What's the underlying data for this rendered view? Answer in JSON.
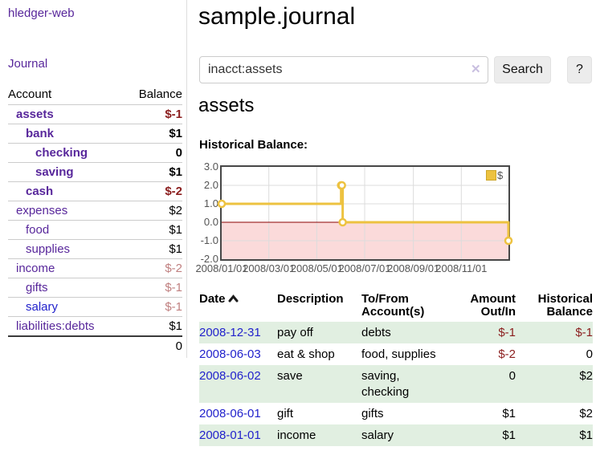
{
  "app": {
    "title": "hledger-web"
  },
  "sidebar": {
    "journal_link": "Journal",
    "accounts_table": {
      "header_account": "Account",
      "header_balance": "Balance",
      "rows": [
        {
          "name": "assets",
          "balance": "$-1"
        },
        {
          "name": "bank",
          "balance": "$1"
        },
        {
          "name": "checking",
          "balance": "0"
        },
        {
          "name": "saving",
          "balance": "$1"
        },
        {
          "name": "cash",
          "balance": "$-2"
        },
        {
          "name": "expenses",
          "balance": "$2"
        },
        {
          "name": "food",
          "balance": "$1"
        },
        {
          "name": "supplies",
          "balance": "$1"
        },
        {
          "name": "income",
          "balance": "$-2"
        },
        {
          "name": "gifts",
          "balance": "$-1"
        },
        {
          "name": "salary",
          "balance": "$-1"
        },
        {
          "name": "liabilities:debts",
          "balance": "$1"
        }
      ],
      "total": "0"
    }
  },
  "main": {
    "title": "sample.journal",
    "search": {
      "value": "inacct:assets",
      "clear_icon": "✕",
      "search_button": "Search",
      "help_button": "?"
    },
    "account_heading": "assets",
    "chart_label": "Historical Balance:",
    "register_table": {
      "headers": {
        "date": "Date",
        "description": "Description",
        "accounts": "To/From Account(s)",
        "amount": "Amount Out/In",
        "balance": "Historical Balance"
      },
      "rows": [
        {
          "date": "2008-12-31",
          "description": "pay off",
          "accounts": "debts",
          "amount": "$-1",
          "balance": "$-1"
        },
        {
          "date": "2008-06-03",
          "description": "eat & shop",
          "accounts": "food, supplies",
          "amount": "$-2",
          "balance": "0"
        },
        {
          "date": "2008-06-02",
          "description": "save",
          "accounts": "saving, checking",
          "amount": "0",
          "balance": "$2"
        },
        {
          "date": "2008-06-01",
          "description": "gift",
          "accounts": "gifts",
          "amount": "$1",
          "balance": "$2"
        },
        {
          "date": "2008-01-01",
          "description": "income",
          "accounts": "salary",
          "amount": "$1",
          "balance": "$1"
        }
      ]
    }
  },
  "chart_data": {
    "type": "line",
    "title": "Historical Balance:",
    "legend": [
      "$"
    ],
    "legend_position": "top-right",
    "grid": true,
    "step": true,
    "x_range": [
      "2008-01-01",
      "2008-12-31"
    ],
    "ylim": [
      -2.0,
      3.0
    ],
    "y_ticks": [
      "3.0",
      "2.0",
      "1.0",
      "0.0",
      "-1.0",
      "-2.0"
    ],
    "x_ticks": [
      "2008/01/01",
      "2008/03/01",
      "2008/05/01",
      "2008/07/01",
      "2008/09/01",
      "2008/11/01"
    ],
    "series": [
      {
        "name": "$",
        "points": [
          [
            "2008-01-01",
            1
          ],
          [
            "2008-06-01",
            2
          ],
          [
            "2008-06-02",
            2
          ],
          [
            "2008-06-03",
            0
          ],
          [
            "2008-12-31",
            -1
          ]
        ]
      }
    ],
    "colors": {
      "line": "#edc240",
      "marker_fill": "#ffffff",
      "negative_region": "#fbdada",
      "zero_line": "#8b0000",
      "grid": "#dcdcdc",
      "border": "#474747"
    }
  },
  "colors": {
    "link_purple": "#58279b",
    "link_blue": "#2222cc",
    "negative": "#8b1e1e",
    "negative_faded": "#c08080",
    "row_green": "#e1efe1",
    "button_bg": "#ececec"
  }
}
